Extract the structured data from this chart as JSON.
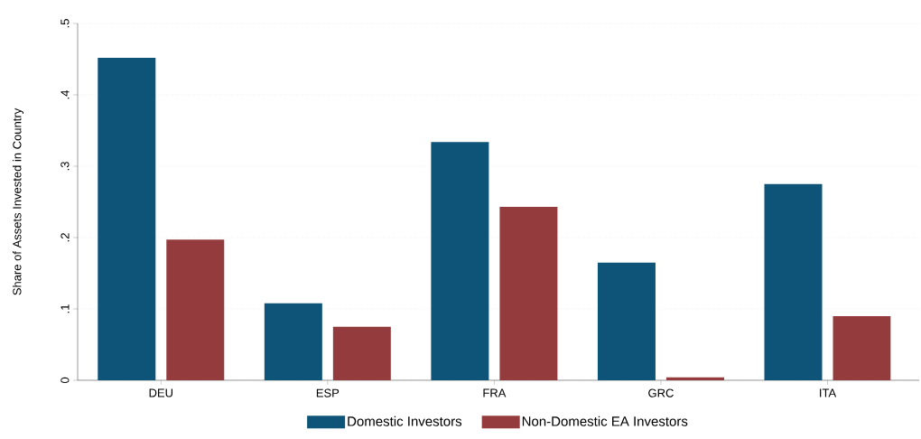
{
  "chart_data": {
    "type": "bar",
    "ylabel": "Share of Assets Invested in Country",
    "categories": [
      "DEU",
      "ESP",
      "FRA",
      "GRC",
      "ITA"
    ],
    "series": [
      {
        "name": "Domestic Investors",
        "color": "#0e5479",
        "values": [
          0.452,
          0.108,
          0.334,
          0.165,
          0.275
        ]
      },
      {
        "name": "Non-Domestic EA Investors",
        "color": "#943c3d",
        "values": [
          0.197,
          0.075,
          0.243,
          0.004,
          0.09
        ]
      }
    ],
    "ylim": [
      0,
      0.5
    ],
    "yticks": [
      0,
      {
        "value": 0.1,
        "label": ".1"
      },
      {
        "value": 0.2,
        "label": ".2"
      },
      {
        "value": 0.3,
        "label": ".3"
      },
      {
        "value": 0.4,
        "label": ".4"
      },
      {
        "value": 0.5,
        "label": ".5"
      }
    ],
    "grid": "y",
    "legend": "bottom"
  }
}
